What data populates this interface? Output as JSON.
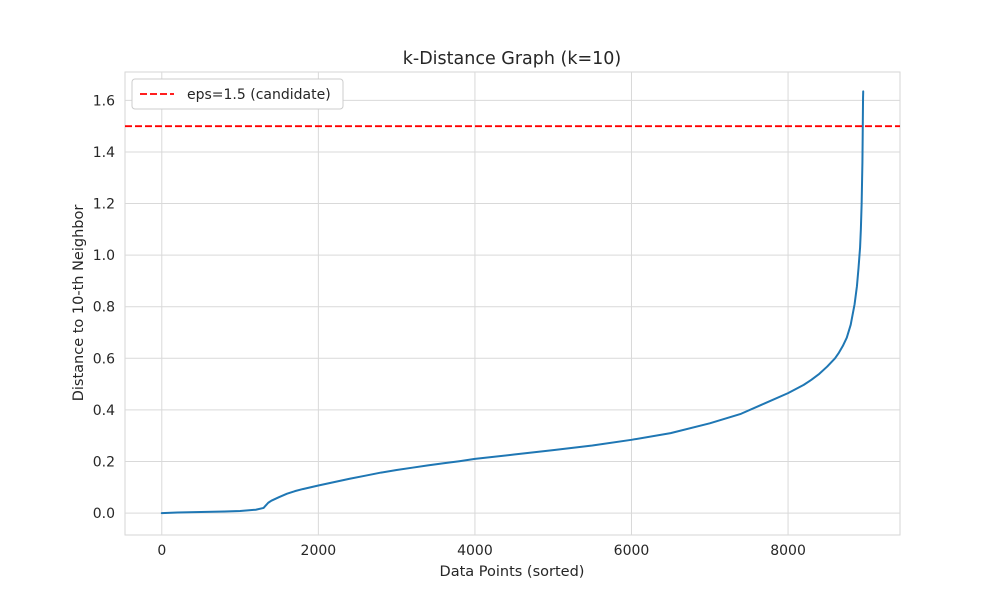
{
  "chart_data": {
    "type": "line",
    "title": "k-Distance Graph (k=10)",
    "xlabel": "Data Points (sorted)",
    "ylabel": "Distance to 10-th Neighbor",
    "xlim": [
      -470,
      9430
    ],
    "ylim": [
      -0.085,
      1.71
    ],
    "xticks": [
      0,
      2000,
      4000,
      6000,
      8000
    ],
    "yticks": [
      0.0,
      0.2,
      0.4,
      0.6,
      0.8,
      1.0,
      1.2,
      1.4,
      1.6
    ],
    "ytick_labels": [
      "0.0",
      "0.2",
      "0.4",
      "0.6",
      "0.8",
      "1.0",
      "1.2",
      "1.4",
      "1.6"
    ],
    "grid": true,
    "legend_position": "top-left",
    "series": [
      {
        "color": "#1f77b4",
        "x": [
          0,
          200,
          500,
          800,
          1000,
          1200,
          1300,
          1330,
          1360,
          1400,
          1500,
          1600,
          1700,
          1800,
          2000,
          2200,
          2400,
          2600,
          2800,
          3000,
          3200,
          3400,
          3600,
          3800,
          4000,
          4500,
          5000,
          5500,
          6000,
          6500,
          7000,
          7400,
          7700,
          8000,
          8200,
          8300,
          8400,
          8500,
          8600,
          8650,
          8700,
          8750,
          8800,
          8850,
          8880,
          8900,
          8920,
          8930,
          8940,
          8945,
          8950,
          8953,
          8955,
          8957,
          8958,
          8960
        ],
        "y": [
          0.0,
          0.002,
          0.004,
          0.006,
          0.008,
          0.013,
          0.02,
          0.03,
          0.04,
          0.048,
          0.062,
          0.075,
          0.085,
          0.093,
          0.107,
          0.12,
          0.133,
          0.145,
          0.157,
          0.167,
          0.176,
          0.185,
          0.193,
          0.201,
          0.21,
          0.227,
          0.244,
          0.262,
          0.284,
          0.31,
          0.348,
          0.385,
          0.425,
          0.465,
          0.497,
          0.517,
          0.54,
          0.568,
          0.6,
          0.622,
          0.648,
          0.68,
          0.73,
          0.81,
          0.88,
          0.95,
          1.03,
          1.1,
          1.2,
          1.28,
          1.36,
          1.45,
          1.52,
          1.58,
          1.61,
          1.635
        ]
      },
      {
        "name": "eps=1.5 (candidate)",
        "color": "#ff0000",
        "style": "dashed",
        "hline": 1.5
      }
    ]
  }
}
